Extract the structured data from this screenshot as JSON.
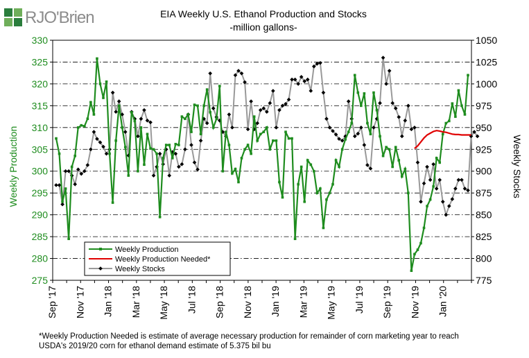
{
  "logo": {
    "text": "RJO'Brien"
  },
  "chart_data": {
    "type": "line",
    "title": "EIA Weekly U.S. Ethanol Production and Stocks",
    "subtitle": "-million  gallons-",
    "ylabel_left": "Weekly Production",
    "ylabel_right": "Weekly Stocks",
    "ylim_left": [
      275,
      330
    ],
    "ylim_right": [
      775,
      1050
    ],
    "yticks_left": [
      "275",
      "280",
      "285",
      "290",
      "295",
      "300",
      "305",
      "310",
      "315",
      "320",
      "325",
      "330"
    ],
    "yticks_right": [
      "775",
      "800",
      "825",
      "850",
      "875",
      "900",
      "925",
      "950",
      "975",
      "1000",
      "1025",
      "1050"
    ],
    "x_tick_labels": [
      "Sep '17",
      "Nov '17",
      "Jan '18",
      "Mar '18",
      "May '18",
      "Jul '18",
      "Sep '18",
      "Nov '18",
      "Jan '19",
      "Mar '19",
      "May '19",
      "Jul '19",
      "Sep '19",
      "Nov '19",
      "Jan '20"
    ],
    "grid": true,
    "legend_position": "bottom-left",
    "colors": {
      "production": "#1e8c1e",
      "needed": "#e00000",
      "stocks": "#999999",
      "stocks_marker": "#000000"
    },
    "legend": [
      "Weekly Production",
      "Weekly Production Needed*",
      "Weekly Stocks"
    ],
    "series": [
      {
        "name": "Weekly Production",
        "axis": "left",
        "start_week": 0,
        "values": [
          307.5,
          304,
          293,
          296,
          284.5,
          301,
          303.5,
          310,
          310.5,
          310.3,
          312,
          315.8,
          313,
          325.8,
          320,
          316.8,
          320.5,
          304,
          292.8,
          307,
          315,
          310,
          305.5,
          299,
          313.5,
          311.5,
          300,
          310,
          301.5,
          308.5,
          305.2,
          305,
          304,
          289.5,
          303,
          306,
          306,
          303,
          306.2,
          306,
          312.5,
          312,
          313,
          309,
          315.2,
          315,
          308.5,
          315,
          318.7,
          313.5,
          310,
          312,
          319.5,
          300,
          309,
          306,
          299.5,
          300.5,
          297.5,
          303,
          305,
          306,
          304,
          312.5,
          307,
          308.5,
          309,
          310,
          305,
          307,
          307,
          297.5,
          294,
          309,
          307.5,
          307.5,
          284.5,
          297,
          301,
          293,
          302.5,
          301.5,
          300,
          295,
          296,
          287,
          293.5,
          295,
          297,
          302.5,
          301,
          305,
          307.3,
          309,
          311,
          322,
          318,
          315,
          317.8,
          311,
          308.5,
          318,
          314,
          308,
          303.5,
          305.5,
          305,
          301,
          305.5,
          302.5,
          298.8,
          300.5,
          295,
          277.2,
          281,
          282,
          283.5,
          287,
          292,
          293.5,
          296.5,
          303,
          302,
          308.5,
          311,
          311.5,
          315.5,
          312.5,
          318.5,
          315,
          313,
          322
        ]
      },
      {
        "name": "Weekly Production Needed*",
        "axis": "left",
        "start_week": 114,
        "values": [
          305.2,
          305.8,
          306.7,
          307.6,
          308.3,
          308.7,
          309.1,
          309.3,
          309.2,
          309.0,
          308.9,
          308.7,
          308.5,
          308.4,
          308.4,
          308.3,
          308.3,
          308.3,
          308.3
        ]
      },
      {
        "name": "Weekly Stocks",
        "axis": "right",
        "start_week": 0,
        "values": [
          884,
          884,
          862,
          900,
          900,
          895,
          885,
          902,
          897,
          900,
          907,
          925,
          945,
          937,
          933,
          928,
          920,
          925,
          990,
          968,
          980,
          965,
          945,
          918,
          968,
          960,
          940,
          960,
          970,
          958,
          956,
          895,
          905,
          920,
          908,
          925,
          895,
          922,
          920,
          905,
          908,
          925,
          965,
          930,
          910,
          902,
          935,
          960,
          955,
          1012,
          972,
          962,
          958,
          945,
          940,
          965,
          950,
          1010,
          1015,
          1012,
          1002,
          948,
          980,
          948,
          955,
          970,
          972,
          968,
          978,
          992,
          950,
          970,
          975,
          977,
          982,
          1005,
          1005,
          1000,
          1008,
          1003,
          1005,
          992,
          1020,
          1023,
          1024,
          990,
          960,
          950,
          946,
          942,
          937,
          935,
          940,
          980,
          960,
          940,
          943,
          950,
          930,
          907,
          903,
          950,
          960,
          978,
          1030,
          1000,
          1015,
          978,
          972,
          962,
          940,
          958,
          975,
          948,
          950,
          910,
          865,
          886,
          905,
          890,
          908,
          880,
          890,
          865,
          850,
          860,
          868,
          880,
          890,
          890,
          880,
          878,
          940,
          945,
          940
        ]
      }
    ]
  },
  "footnote": {
    "line1": "*Weekly Production Needed is estimate of average necessary production for remainder of corn marketing year to reach",
    "line2": "USDA's  2019/20 corn for ethanol demand estimate of 5.375 bil bu"
  }
}
